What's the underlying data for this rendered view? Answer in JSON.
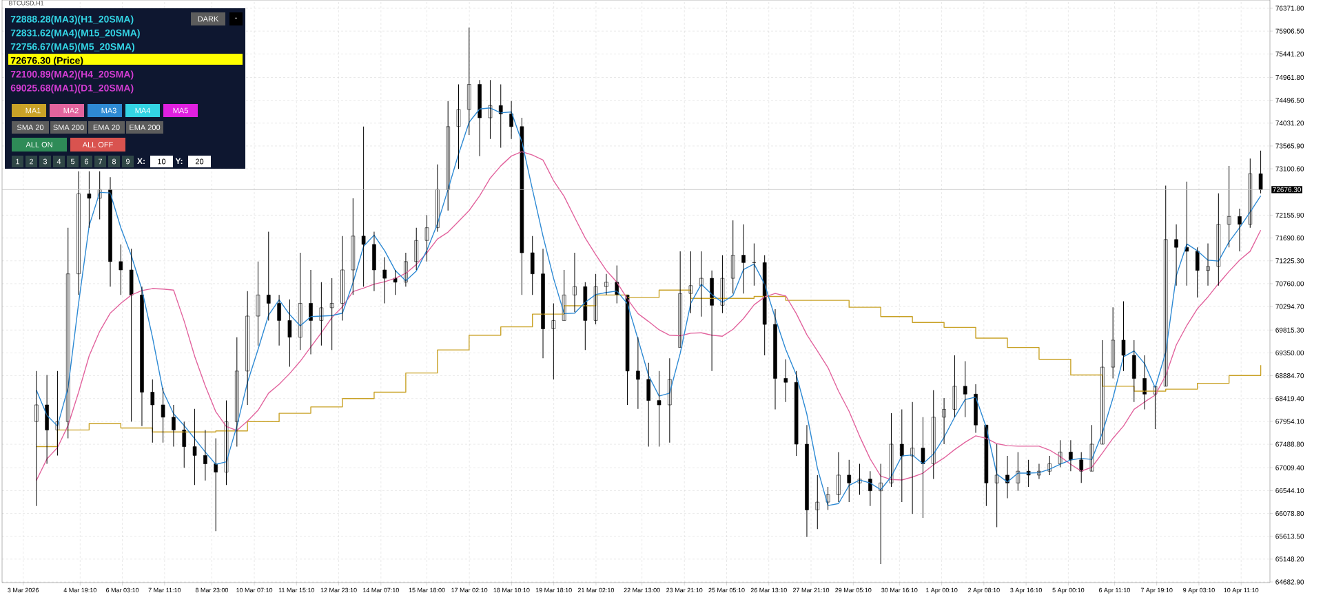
{
  "chart_data": {
    "type": "candlestick",
    "title": "BTCUSD,H1",
    "color": "#000000",
    "x": [
      "2026-03-03T10:00",
      "2026-03-03T18:00",
      "2026-03-04T02:00",
      "2026-03-04T10:00",
      "2026-03-04T18:00",
      "2026-03-05T02:00",
      "2026-03-05T10:00",
      "2026-03-05T18:00",
      "2026-03-06T02:00",
      "2026-03-06T10:00",
      "2026-03-06T18:00",
      "2026-03-07T02:00",
      "2026-03-07T10:00",
      "2026-03-07T18:00",
      "2026-03-08T02:00",
      "2026-03-08T10:00",
      "2026-03-08T18:00",
      "2026-03-09T02:00",
      "2026-03-09T10:00",
      "2026-03-09T18:00",
      "2026-03-10T02:00",
      "2026-03-10T10:00",
      "2026-03-10T18:00",
      "2026-03-11T02:00",
      "2026-03-11T10:00",
      "2026-03-11T18:00",
      "2026-03-12T02:00",
      "2026-03-12T10:00",
      "2026-03-12T18:00",
      "2026-03-13T02:00",
      "2026-03-13T10:00",
      "2026-03-13T18:00",
      "2026-03-14T02:00",
      "2026-03-14T10:00",
      "2026-03-14T18:00",
      "2026-03-15T02:00",
      "2026-03-15T10:00",
      "2026-03-15T18:00",
      "2026-03-16T02:00",
      "2026-03-16T10:00",
      "2026-03-16T18:00",
      "2026-03-17T02:00",
      "2026-03-17T10:00",
      "2026-03-17T18:00",
      "2026-03-18T02:00",
      "2026-03-18T10:00",
      "2026-03-18T18:00",
      "2026-03-19T02:00",
      "2026-03-19T10:00",
      "2026-03-19T18:00",
      "2026-03-20T02:00",
      "2026-03-20T10:00",
      "2026-03-20T18:00",
      "2026-03-21T02:00",
      "2026-03-21T10:00",
      "2026-03-21T18:00",
      "2026-03-22T02:00",
      "2026-03-22T10:00",
      "2026-03-22T18:00",
      "2026-03-23T02:00",
      "2026-03-23T10:00",
      "2026-03-23T18:00",
      "2026-03-24T02:00",
      "2026-03-24T10:00",
      "2026-03-24T18:00",
      "2026-03-25T02:00",
      "2026-03-25T10:00",
      "2026-03-25T18:00",
      "2026-03-26T02:00",
      "2026-03-26T10:00",
      "2026-03-26T18:00",
      "2026-03-27T02:00",
      "2026-03-27T10:00",
      "2026-03-27T18:00",
      "2026-03-28T02:00",
      "2026-03-28T10:00",
      "2026-03-28T18:00",
      "2026-03-29T02:00",
      "2026-03-29T10:00",
      "2026-03-29T18:00",
      "2026-03-30T02:00",
      "2026-03-30T10:00",
      "2026-03-30T18:00",
      "2026-03-31T02:00",
      "2026-03-31T10:00",
      "2026-03-31T18:00",
      "2026-04-01T02:00",
      "2026-04-01T10:00",
      "2026-04-01T18:00",
      "2026-04-02T02:00",
      "2026-04-02T10:00",
      "2026-04-02T18:00",
      "2026-04-03T02:00",
      "2026-04-03T10:00",
      "2026-04-03T18:00",
      "2026-04-04T02:00",
      "2026-04-04T10:00",
      "2026-04-04T18:00",
      "2026-04-05T02:00",
      "2026-04-05T10:00",
      "2026-04-05T18:00",
      "2026-04-06T02:00",
      "2026-04-06T10:00",
      "2026-04-06T18:00",
      "2026-04-07T02:00",
      "2026-04-07T10:00",
      "2026-04-07T18:00",
      "2026-04-08T02:00",
      "2026-04-08T10:00",
      "2026-04-08T18:00",
      "2026-04-09T02:00",
      "2026-04-09T10:00",
      "2026-04-09T18:00",
      "2026-04-10T02:00",
      "2026-04-10T10:00",
      "2026-04-10T18:00",
      "2026-04-11T02:00"
    ],
    "ohlc": [
      [
        67950,
        68980,
        66230,
        68290
      ],
      [
        68290,
        68900,
        67090,
        67780
      ],
      [
        67780,
        68980,
        67260,
        67950
      ],
      [
        67950,
        71900,
        67610,
        70960
      ],
      [
        70960,
        73050,
        70530,
        72590
      ],
      [
        72590,
        73050,
        71900,
        72500
      ],
      [
        72500,
        73050,
        72070,
        72680
      ],
      [
        72680,
        72930,
        70700,
        71210
      ],
      [
        71210,
        71560,
        70530,
        71040
      ],
      [
        71040,
        71470,
        67950,
        70530
      ],
      [
        70530,
        70700,
        67860,
        68550
      ],
      [
        68550,
        68810,
        67520,
        68290
      ],
      [
        68290,
        68640,
        67520,
        68040
      ],
      [
        68040,
        68290,
        67440,
        67780
      ],
      [
        67780,
        67950,
        67010,
        67440
      ],
      [
        67440,
        68210,
        66660,
        67260
      ],
      [
        67260,
        67780,
        66750,
        67090
      ],
      [
        67090,
        67610,
        65720,
        66920
      ],
      [
        66920,
        68380,
        66660,
        67950
      ],
      [
        67950,
        69670,
        67440,
        68980
      ],
      [
        68980,
        70610,
        68290,
        70100
      ],
      [
        70100,
        71210,
        69500,
        70530
      ],
      [
        70530,
        71820,
        70010,
        70360
      ],
      [
        70360,
        70530,
        69500,
        70010
      ],
      [
        70010,
        70440,
        69070,
        69670
      ],
      [
        69670,
        71390,
        69410,
        70360
      ],
      [
        70360,
        71040,
        69320,
        70010
      ],
      [
        70010,
        70790,
        69500,
        70270
      ],
      [
        70270,
        70870,
        69410,
        70360
      ],
      [
        70360,
        71730,
        70010,
        71040
      ],
      [
        71040,
        72500,
        70530,
        71730
      ],
      [
        71730,
        73960,
        70700,
        71560
      ],
      [
        71560,
        71820,
        70610,
        71040
      ],
      [
        71040,
        71300,
        70360,
        70870
      ],
      [
        70870,
        71040,
        70530,
        70790
      ],
      [
        70790,
        71390,
        70700,
        71210
      ],
      [
        71210,
        71900,
        71040,
        71640
      ],
      [
        71640,
        72160,
        71210,
        71900
      ],
      [
        71900,
        73190,
        71820,
        72680
      ],
      [
        72680,
        74480,
        72250,
        73960
      ],
      [
        73960,
        74820,
        73100,
        74310
      ],
      [
        74310,
        75980,
        73790,
        74820
      ],
      [
        74820,
        74910,
        73360,
        74140
      ],
      [
        74140,
        74910,
        73710,
        74390
      ],
      [
        74390,
        74820,
        73530,
        74220
      ],
      [
        74220,
        74480,
        73710,
        73960
      ],
      [
        73960,
        74140,
        70530,
        71390
      ],
      [
        71390,
        71730,
        70530,
        70960
      ],
      [
        70960,
        71470,
        69240,
        69840
      ],
      [
        69840,
        70360,
        68810,
        70010
      ],
      [
        70010,
        71040,
        70010,
        70530
      ],
      [
        70530,
        71390,
        70180,
        70700
      ],
      [
        70700,
        70790,
        69410,
        70010
      ],
      [
        70010,
        70960,
        69930,
        70700
      ],
      [
        70700,
        70960,
        70530,
        70790
      ],
      [
        70790,
        71130,
        70360,
        70530
      ],
      [
        70530,
        70530,
        68290,
        68980
      ],
      [
        68980,
        69670,
        68210,
        68810
      ],
      [
        68810,
        69150,
        67440,
        68380
      ],
      [
        68380,
        68980,
        67440,
        68290
      ],
      [
        68290,
        69240,
        67520,
        68810
      ],
      [
        69460,
        71420,
        69460,
        70560
      ],
      [
        70560,
        71420,
        70160,
        70720
      ],
      [
        70720,
        71420,
        70090,
        70870
      ],
      [
        70870,
        71030,
        68980,
        70320
      ],
      [
        70320,
        71340,
        70160,
        70870
      ],
      [
        70870,
        72050,
        70560,
        71340
      ],
      [
        71340,
        71970,
        70560,
        71190
      ],
      [
        71190,
        71580,
        70720,
        71190
      ],
      [
        71190,
        71340,
        69300,
        69930
      ],
      [
        69930,
        70240,
        68200,
        68830
      ],
      [
        68830,
        69220,
        68350,
        68750
      ],
      [
        68750,
        68980,
        67250,
        67490
      ],
      [
        67490,
        67880,
        65600,
        66150
      ],
      [
        66150,
        66860,
        65760,
        66310
      ],
      [
        66310,
        66620,
        66150,
        66460
      ],
      [
        66460,
        67330,
        66310,
        66860
      ],
      [
        66860,
        67170,
        66310,
        66700
      ],
      [
        66700,
        67090,
        66460,
        66780
      ],
      [
        66780,
        66940,
        66230,
        66540
      ],
      [
        66540,
        67090,
        65050,
        66700
      ],
      [
        66700,
        68120,
        66620,
        67490
      ],
      [
        67490,
        68200,
        66310,
        67250
      ],
      [
        67250,
        68350,
        66070,
        67410
      ],
      [
        67410,
        68040,
        65990,
        67090
      ],
      [
        67090,
        68590,
        66780,
        68040
      ],
      [
        68040,
        68430,
        67490,
        68200
      ],
      [
        68200,
        69300,
        68040,
        68670
      ],
      [
        68670,
        69180,
        68040,
        68510
      ],
      [
        68510,
        68710,
        67720,
        67880
      ],
      [
        67880,
        67880,
        66230,
        66700
      ],
      [
        66700,
        67490,
        65800,
        66860
      ],
      [
        66860,
        67250,
        66390,
        66700
      ],
      [
        66700,
        67330,
        66540,
        66940
      ],
      [
        66940,
        67170,
        66620,
        66860
      ],
      [
        66860,
        67090,
        66780,
        66940
      ],
      [
        66940,
        67250,
        66860,
        67090
      ],
      [
        67090,
        67570,
        67020,
        67330
      ],
      [
        67330,
        67570,
        66940,
        67170
      ],
      [
        67170,
        67330,
        66700,
        66940
      ],
      [
        66940,
        67880,
        66940,
        67490
      ],
      [
        67490,
        69610,
        67490,
        69060
      ],
      [
        69060,
        70280,
        68830,
        69610
      ],
      [
        69610,
        70400,
        68980,
        69300
      ],
      [
        69300,
        69610,
        68350,
        68830
      ],
      [
        68830,
        69300,
        68200,
        68510
      ],
      [
        68510,
        68670,
        67800,
        68670
      ],
      [
        68670,
        72760,
        68670,
        71660
      ],
      [
        71660,
        71970,
        70720,
        71500
      ],
      [
        71500,
        72840,
        70720,
        71420
      ],
      [
        71420,
        71500,
        70480,
        71030
      ],
      [
        71030,
        71580,
        70720,
        71110
      ],
      [
        71110,
        72600,
        70720,
        71970
      ],
      [
        71970,
        73160,
        71500,
        72130
      ],
      [
        72130,
        72290,
        71420,
        71970
      ],
      [
        71970,
        73310,
        71900,
        73000
      ],
      [
        73000,
        73470,
        72600,
        72676.3
      ]
    ],
    "series": [
      {
        "name": "MA1",
        "type": "step",
        "color": "#c9a227",
        "values": [
          67440,
          67440,
          67780,
          67780,
          67780,
          67910,
          67910,
          67910,
          67820,
          67820,
          67820,
          67740,
          67740,
          67740,
          67740,
          67740,
          67740,
          67760,
          67760,
          67760,
          67950,
          67950,
          67950,
          68120,
          68120,
          68120,
          68250,
          68250,
          68250,
          68420,
          68420,
          68420,
          68550,
          68550,
          68550,
          68940,
          68940,
          68940,
          69410,
          69410,
          69410,
          69710,
          69710,
          69710,
          69880,
          69880,
          69880,
          70140,
          70140,
          70140,
          70310,
          70310,
          70310,
          70530,
          70530,
          70530,
          70480,
          70480,
          70480,
          70630,
          70630,
          70630,
          70460,
          70460,
          70460,
          70460,
          70460,
          70460,
          70500,
          70500,
          70500,
          70420,
          70420,
          70420,
          70420,
          70420,
          70420,
          70280,
          70280,
          70280,
          70090,
          70090,
          70090,
          69970,
          69970,
          69970,
          69870,
          69870,
          69870,
          69650,
          69650,
          69650,
          69460,
          69460,
          69460,
          69220,
          69220,
          69220,
          68900,
          68900,
          68900,
          68670,
          68670,
          68670,
          68570,
          68570,
          68570,
          68610,
          68610,
          68610,
          68730,
          68730,
          68730,
          68890,
          68890,
          68890,
          69100
        ]
      },
      {
        "name": "MA2",
        "type": "line",
        "color": "#e2649e",
        "values": [
          66750,
          67190,
          67420,
          67870,
          68550,
          69290,
          69790,
          70160,
          70360,
          70530,
          70620,
          70660,
          70650,
          70630,
          70000,
          69280,
          68680,
          68150,
          67850,
          67770,
          67960,
          68180,
          68530,
          68710,
          68930,
          69180,
          69470,
          69760,
          70070,
          70290,
          70600,
          70670,
          70750,
          70800,
          70870,
          70970,
          71150,
          71390,
          71670,
          71810,
          72030,
          72250,
          72550,
          72910,
          73160,
          73360,
          73450,
          73380,
          73280,
          72860,
          72540,
          72110,
          71690,
          71350,
          71030,
          70790,
          70450,
          70150,
          69990,
          69820,
          69710,
          69700,
          69750,
          69760,
          69710,
          69690,
          69830,
          70050,
          70330,
          70490,
          70560,
          70510,
          70150,
          69720,
          69390,
          69050,
          68570,
          68160,
          67650,
          67190,
          66840,
          66770,
          66760,
          66820,
          66900,
          67070,
          67210,
          67380,
          67530,
          67660,
          67610,
          67500,
          67460,
          67450,
          67450,
          67450,
          67370,
          67240,
          67080,
          66940,
          67020,
          67310,
          67610,
          67860,
          68200,
          68350,
          68490,
          68890,
          69510,
          69910,
          70250,
          70490,
          70760,
          71010,
          71240,
          71420,
          71850
        ]
      },
      {
        "name": "MA3",
        "type": "line",
        "color": "#2e8ad4",
        "values": [
          68590,
          68080,
          67860,
          68640,
          70360,
          71940,
          72620,
          72610,
          71900,
          71330,
          70640,
          69670,
          68570,
          68110,
          67870,
          67600,
          67330,
          67080,
          67130,
          67860,
          68750,
          69420,
          70120,
          70430,
          70130,
          69900,
          70090,
          70100,
          70110,
          70160,
          70780,
          71520,
          71750,
          71430,
          71030,
          70820,
          71020,
          71440,
          71980,
          72680,
          73400,
          74050,
          74320,
          74340,
          74240,
          74260,
          73650,
          72680,
          71730,
          70870,
          70150,
          70160,
          70380,
          70540,
          70580,
          70610,
          70350,
          69630,
          68890,
          68470,
          68530,
          69340,
          70360,
          70750,
          70540,
          70380,
          70520,
          71050,
          71160,
          70750,
          70060,
          69420,
          68900,
          68100,
          67000,
          66240,
          66280,
          66650,
          66760,
          66700,
          66560,
          66830,
          67250,
          67270,
          67090,
          67290,
          67630,
          68040,
          68400,
          68450,
          67830,
          66880,
          66720,
          66900,
          66900,
          66910,
          66980,
          67080,
          67170,
          67200,
          67180,
          67720,
          68430,
          69270,
          69390,
          69130,
          68640,
          69360,
          70920,
          71570,
          71430,
          71240,
          71220,
          71610,
          71900,
          72220,
          72550
        ]
      }
    ],
    "xlim": [
      "2026-03-02T08:00",
      "2026-04-11T09:00"
    ],
    "xticks": [
      {
        "value": "2026-03-03T00:00",
        "label": "3 Mar 2026"
      },
      {
        "value": "2026-03-04T19:10",
        "label": "4 Mar 19:10"
      },
      {
        "value": "2026-03-06T03:10",
        "label": "6 Mar 03:10"
      },
      {
        "value": "2026-03-07T11:10",
        "label": "7 Mar 11:10"
      },
      {
        "value": "2026-03-08T23:00",
        "label": "8 Mar 23:00"
      },
      {
        "value": "2026-03-10T07:10",
        "label": "10 Mar 07:10"
      },
      {
        "value": "2026-03-11T15:10",
        "label": "11 Mar 15:10"
      },
      {
        "value": "2026-03-12T23:10",
        "label": "12 Mar 23:10"
      },
      {
        "value": "2026-03-14T07:10",
        "label": "14 Mar 07:10"
      },
      {
        "value": "2026-03-15T18:00",
        "label": "15 Mar 18:00"
      },
      {
        "value": "2026-03-17T02:10",
        "label": "17 Mar 02:10"
      },
      {
        "value": "2026-03-18T10:10",
        "label": "18 Mar 10:10"
      },
      {
        "value": "2026-03-19T18:10",
        "label": "19 Mar 18:10"
      },
      {
        "value": "2026-03-21T02:10",
        "label": "21 Mar 02:10"
      },
      {
        "value": "2026-03-22T13:00",
        "label": "22 Mar 13:00"
      },
      {
        "value": "2026-03-23T21:10",
        "label": "23 Mar 21:10"
      },
      {
        "value": "2026-03-25T05:10",
        "label": "25 Mar 05:10"
      },
      {
        "value": "2026-03-26T13:10",
        "label": "26 Mar 13:10"
      },
      {
        "value": "2026-03-27T21:10",
        "label": "27 Mar 21:10"
      },
      {
        "value": "2026-03-29T05:10",
        "label": "29 Mar 05:10"
      },
      {
        "value": "2026-03-30T16:10",
        "label": "30 Mar 16:10"
      },
      {
        "value": "2026-04-01T00:10",
        "label": "1 Apr 00:10"
      },
      {
        "value": "2026-04-02T08:10",
        "label": "2 Apr 08:10"
      },
      {
        "value": "2026-04-03T16:10",
        "label": "3 Apr 16:10"
      },
      {
        "value": "2026-04-05T00:10",
        "label": "5 Apr 00:10"
      },
      {
        "value": "2026-04-06T11:10",
        "label": "6 Apr 11:10"
      },
      {
        "value": "2026-04-07T19:10",
        "label": "7 Apr 19:10"
      },
      {
        "value": "2026-04-09T03:10",
        "label": "9 Apr 03:10"
      },
      {
        "value": "2026-04-10T11:10",
        "label": "10 Apr 11:10"
      }
    ],
    "ylim": [
      64670,
      76540
    ],
    "yticks": [
      {
        "value": 76371.8,
        "label": "76371.80"
      },
      {
        "value": 75906.5,
        "label": "75906.50"
      },
      {
        "value": 75441.2,
        "label": "75441.20"
      },
      {
        "value": 74961.8,
        "label": "74961.80"
      },
      {
        "value": 74496.5,
        "label": "74496.50"
      },
      {
        "value": 74031.2,
        "label": "74031.20"
      },
      {
        "value": 73565.9,
        "label": "73565.90"
      },
      {
        "value": 73100.6,
        "label": "73100.60"
      },
      {
        "value": 72155.9,
        "label": "72155.90"
      },
      {
        "value": 71690.6,
        "label": "71690.60"
      },
      {
        "value": 71225.3,
        "label": "71225.30"
      },
      {
        "value": 70760,
        "label": "70760.00"
      },
      {
        "value": 70294.7,
        "label": "70294.70"
      },
      {
        "value": 69815.3,
        "label": "69815.30"
      },
      {
        "value": 69350,
        "label": "69350.00"
      },
      {
        "value": 68884.7,
        "label": "68884.70"
      },
      {
        "value": 68419.4,
        "label": "68419.40"
      },
      {
        "value": 67954.1,
        "label": "67954.10"
      },
      {
        "value": 67488.8,
        "label": "67488.80"
      },
      {
        "value": 67009.4,
        "label": "67009.40"
      },
      {
        "value": 66544.1,
        "label": "66544.10"
      },
      {
        "value": 66078.8,
        "label": "66078.80"
      },
      {
        "value": 65613.5,
        "label": "65613.50"
      },
      {
        "value": 65148.2,
        "label": "65148.20"
      },
      {
        "value": 64682.9,
        "label": "64682.90"
      }
    ],
    "ref_lines": [
      {
        "axis": "y",
        "value": 72676.3,
        "label": "72676.30",
        "color": "#c0c0c0"
      }
    ],
    "annotations": [
      "72888.28(MA3)(H1_20SMA)",
      "72831.62(MA4)(M15_20SMA)",
      "72756.67(MA5)(M5_20SMA)",
      "72676.30 (Price)",
      "72100.89(MA2)(H4_20SMA)",
      "69025.68(MA1)(D1_20SMA)",
      "DARK",
      "-",
      "MA4",
      "MA5",
      "SMA 20",
      "SMA 200",
      "EMA 20",
      "EMA 200",
      "ALL ON",
      "ALL OFF",
      "1",
      "2",
      "3",
      "4",
      "5",
      "6",
      "7",
      "8",
      "9",
      "X:",
      "10",
      "Y:",
      "20"
    ],
    "legend": "top left",
    "grid": true
  }
}
